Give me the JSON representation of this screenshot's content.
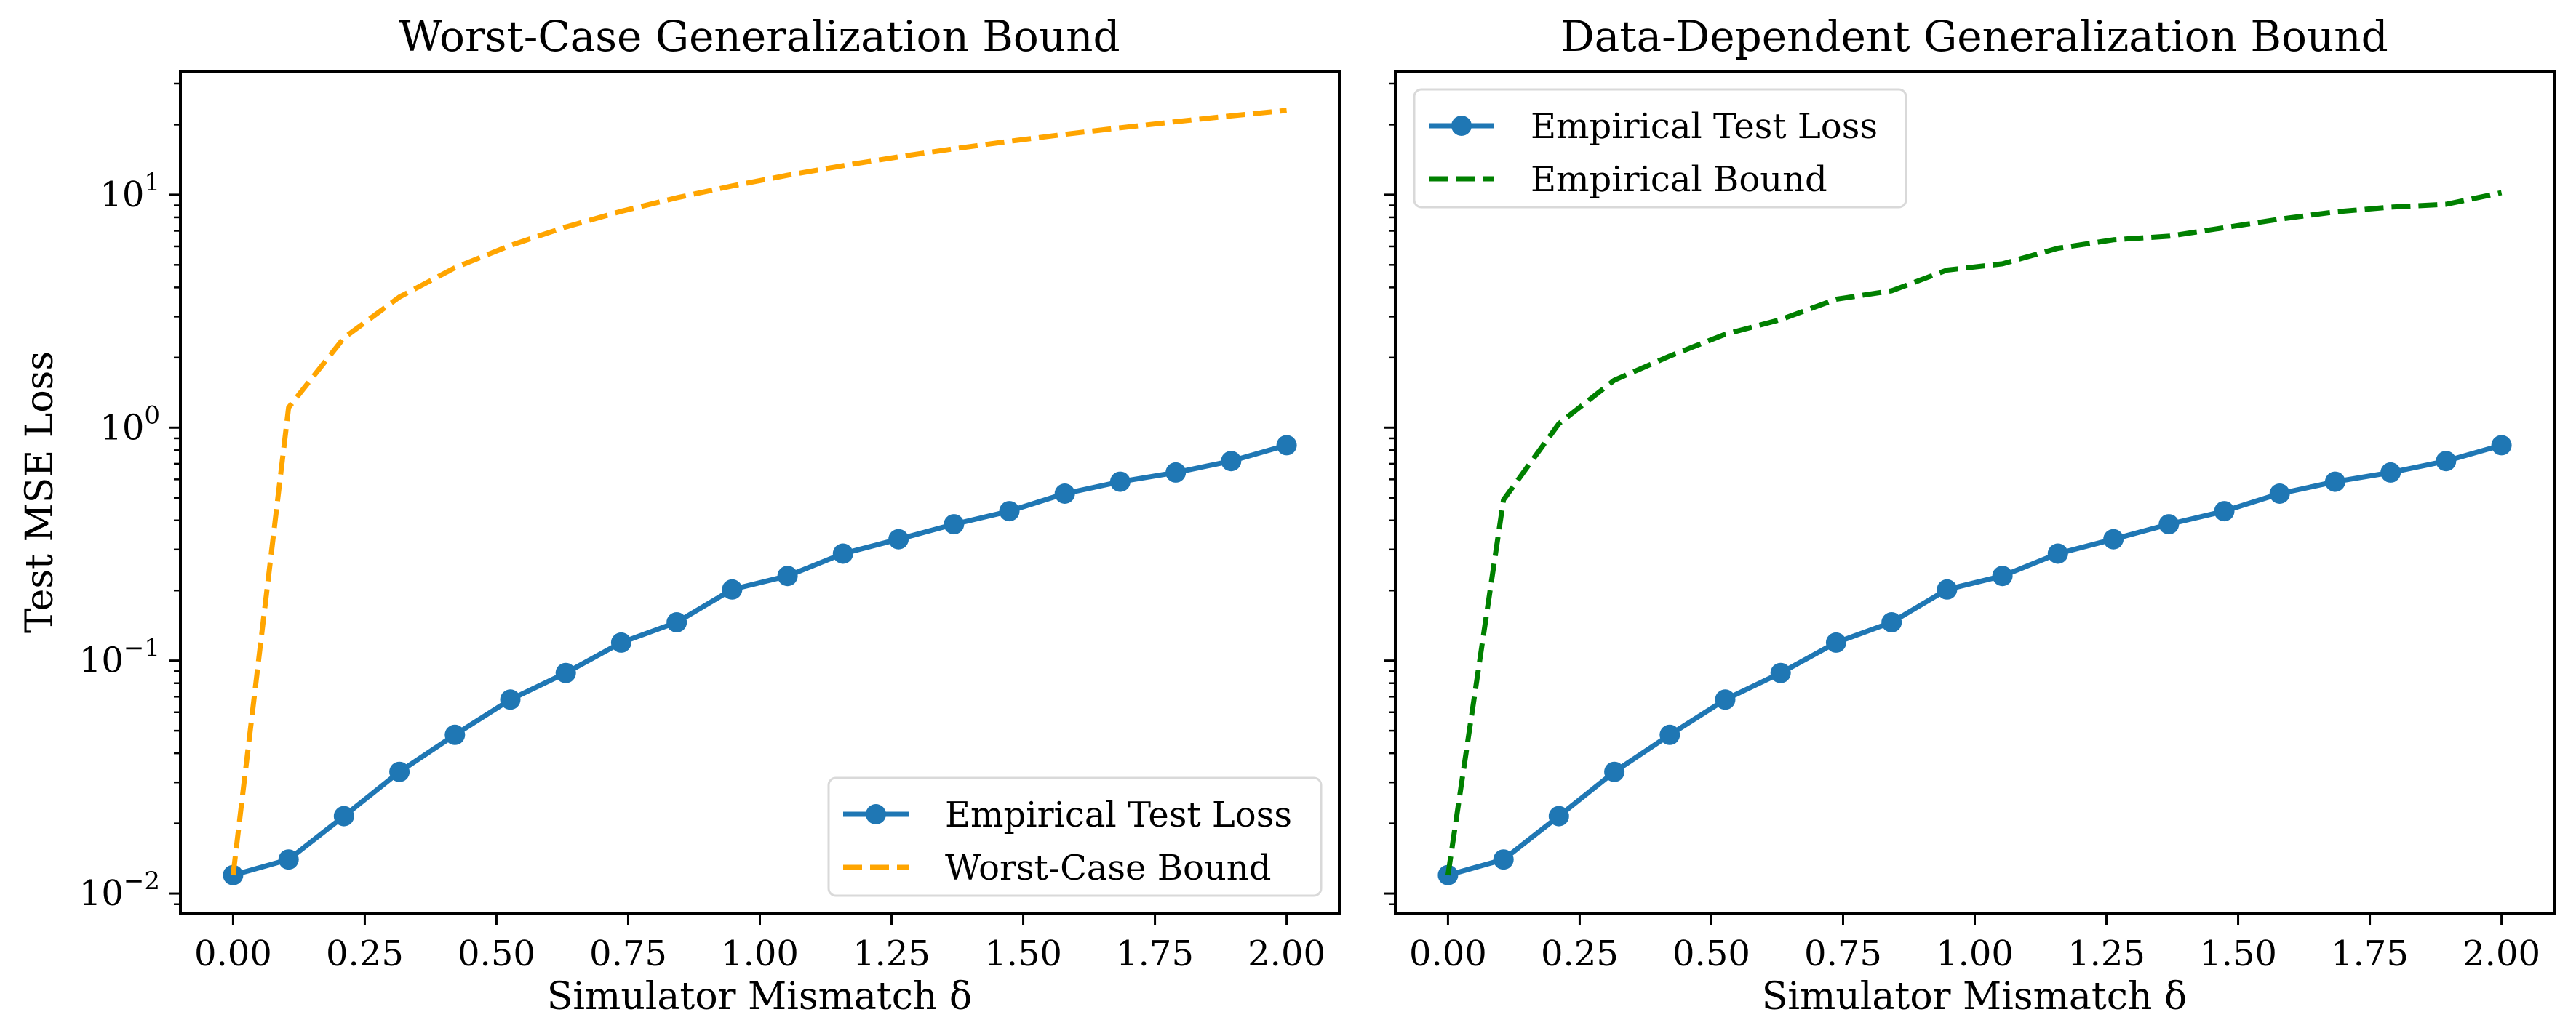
{
  "figure": {
    "ylabel": "Test MSE Loss",
    "shared_y": true
  },
  "chart_data": [
    {
      "type": "line",
      "title": "Worst-Case Generalization Bound",
      "xlabel": "Simulator Mismatch δ",
      "ylabel": "Test MSE Loss",
      "yscale": "log",
      "xlim": [
        -0.1,
        2.1
      ],
      "ylim": [
        0.00824,
        33.9
      ],
      "grid": false,
      "legend_position": "lower-right",
      "xticks": [
        0.0,
        0.25,
        0.5,
        0.75,
        1.0,
        1.25,
        1.5,
        1.75,
        2.0
      ],
      "xtick_labels": [
        "0.00",
        "0.25",
        "0.50",
        "0.75",
        "1.00",
        "1.25",
        "1.50",
        "1.75",
        "2.00"
      ],
      "yticks": [
        0.01,
        0.1,
        1,
        10
      ],
      "ytick_labels": [
        {
          "base": "10",
          "exp": "−2"
        },
        {
          "base": "10",
          "exp": "−1"
        },
        {
          "base": "10",
          "exp": "0"
        },
        {
          "base": "10",
          "exp": "1"
        }
      ],
      "x": [
        0.0,
        0.1053,
        0.2105,
        0.3158,
        0.4211,
        0.5263,
        0.6316,
        0.7368,
        0.8421,
        0.9474,
        1.0526,
        1.1579,
        1.2632,
        1.3684,
        1.4737,
        1.5789,
        1.6842,
        1.7895,
        1.8947,
        2.0
      ],
      "series": [
        {
          "name": "Empirical Test Loss",
          "color": "#1f77b4",
          "style": "solid",
          "marker": "circle",
          "values": [
            0.012,
            0.014,
            0.0215,
            0.0333,
            0.048,
            0.068,
            0.0885,
            0.1195,
            0.146,
            0.202,
            0.231,
            0.288,
            0.332,
            0.385,
            0.438,
            0.521,
            0.586,
            0.642,
            0.719,
            0.841
          ]
        },
        {
          "name": "Worst-Case Bound",
          "color": "#ffa500",
          "style": "dashed",
          "marker": "none",
          "values": [
            0.012,
            1.22,
            2.43,
            3.64,
            4.86,
            6.06,
            7.27,
            8.49,
            9.7,
            10.91,
            12.12,
            13.33,
            14.54,
            15.75,
            16.96,
            18.17,
            19.38,
            20.59,
            21.8,
            23.01
          ]
        }
      ]
    },
    {
      "type": "line",
      "title": "Data-Dependent Generalization Bound",
      "xlabel": "Simulator Mismatch δ",
      "ylabel": "",
      "yscale": "log",
      "xlim": [
        -0.1,
        2.1
      ],
      "ylim": [
        0.00824,
        33.9
      ],
      "grid": false,
      "legend_position": "upper-left",
      "xticks": [
        0.0,
        0.25,
        0.5,
        0.75,
        1.0,
        1.25,
        1.5,
        1.75,
        2.0
      ],
      "xtick_labels": [
        "0.00",
        "0.25",
        "0.50",
        "0.75",
        "1.00",
        "1.25",
        "1.50",
        "1.75",
        "2.00"
      ],
      "yticks": [
        0.01,
        0.1,
        1,
        10
      ],
      "ytick_labels": [],
      "x": [
        0.0,
        0.1053,
        0.2105,
        0.3158,
        0.4211,
        0.5263,
        0.6316,
        0.7368,
        0.8421,
        0.9474,
        1.0526,
        1.1579,
        1.2632,
        1.3684,
        1.4737,
        1.5789,
        1.6842,
        1.7895,
        1.8947,
        2.0
      ],
      "series": [
        {
          "name": "Empirical Test Loss",
          "color": "#1f77b4",
          "style": "solid",
          "marker": "circle",
          "values": [
            0.012,
            0.014,
            0.0215,
            0.0333,
            0.048,
            0.068,
            0.0885,
            0.1195,
            0.146,
            0.202,
            0.231,
            0.288,
            0.332,
            0.385,
            0.438,
            0.521,
            0.586,
            0.642,
            0.719,
            0.841
          ]
        },
        {
          "name": "Empirical Bound",
          "color": "#008000",
          "style": "dashed",
          "marker": "none",
          "values": [
            0.012,
            0.49,
            1.04,
            1.6,
            2.03,
            2.52,
            2.91,
            3.56,
            3.87,
            4.75,
            5.05,
            5.89,
            6.41,
            6.64,
            7.22,
            7.86,
            8.44,
            8.85,
            9.1,
            10.2
          ]
        }
      ]
    }
  ]
}
